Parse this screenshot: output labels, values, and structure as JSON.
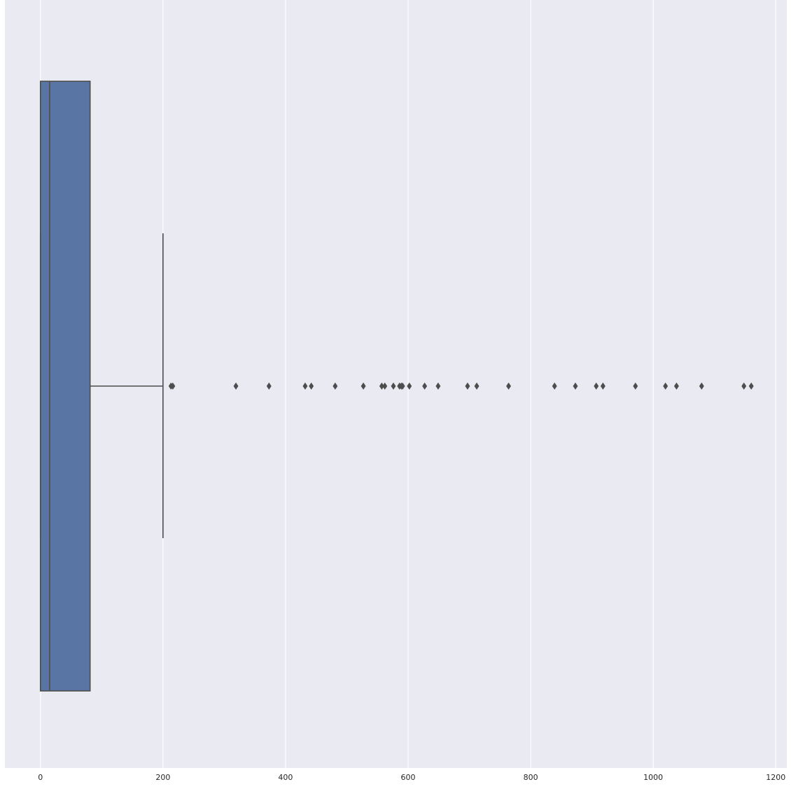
{
  "chart_data": {
    "type": "boxplot",
    "orientation": "horizontal",
    "title": "",
    "xlabel": "",
    "ylabel": "",
    "xlim": [
      -58,
      1218
    ],
    "xticks": [
      0,
      200,
      400,
      600,
      800,
      1000,
      1200
    ],
    "xtick_labels": [
      "0",
      "200",
      "400",
      "600",
      "800",
      "1000",
      "1200"
    ],
    "grid": true,
    "box": {
      "min": 0,
      "q1": 0,
      "median": 15,
      "q3": 81,
      "whisker_high": 200
    },
    "outliers": [
      213,
      216,
      319,
      373,
      432,
      442,
      481,
      527,
      557,
      562,
      576,
      586,
      589,
      591,
      602,
      627,
      649,
      697,
      712,
      764,
      839,
      873,
      907,
      918,
      971,
      1020,
      1038,
      1079,
      1148,
      1160
    ],
    "colors": {
      "plot_background": "#eaeaf2",
      "gridline": "#ffffff",
      "box_fill": "#5975a4",
      "line": "#4d4d4d",
      "text": "#262626"
    }
  }
}
